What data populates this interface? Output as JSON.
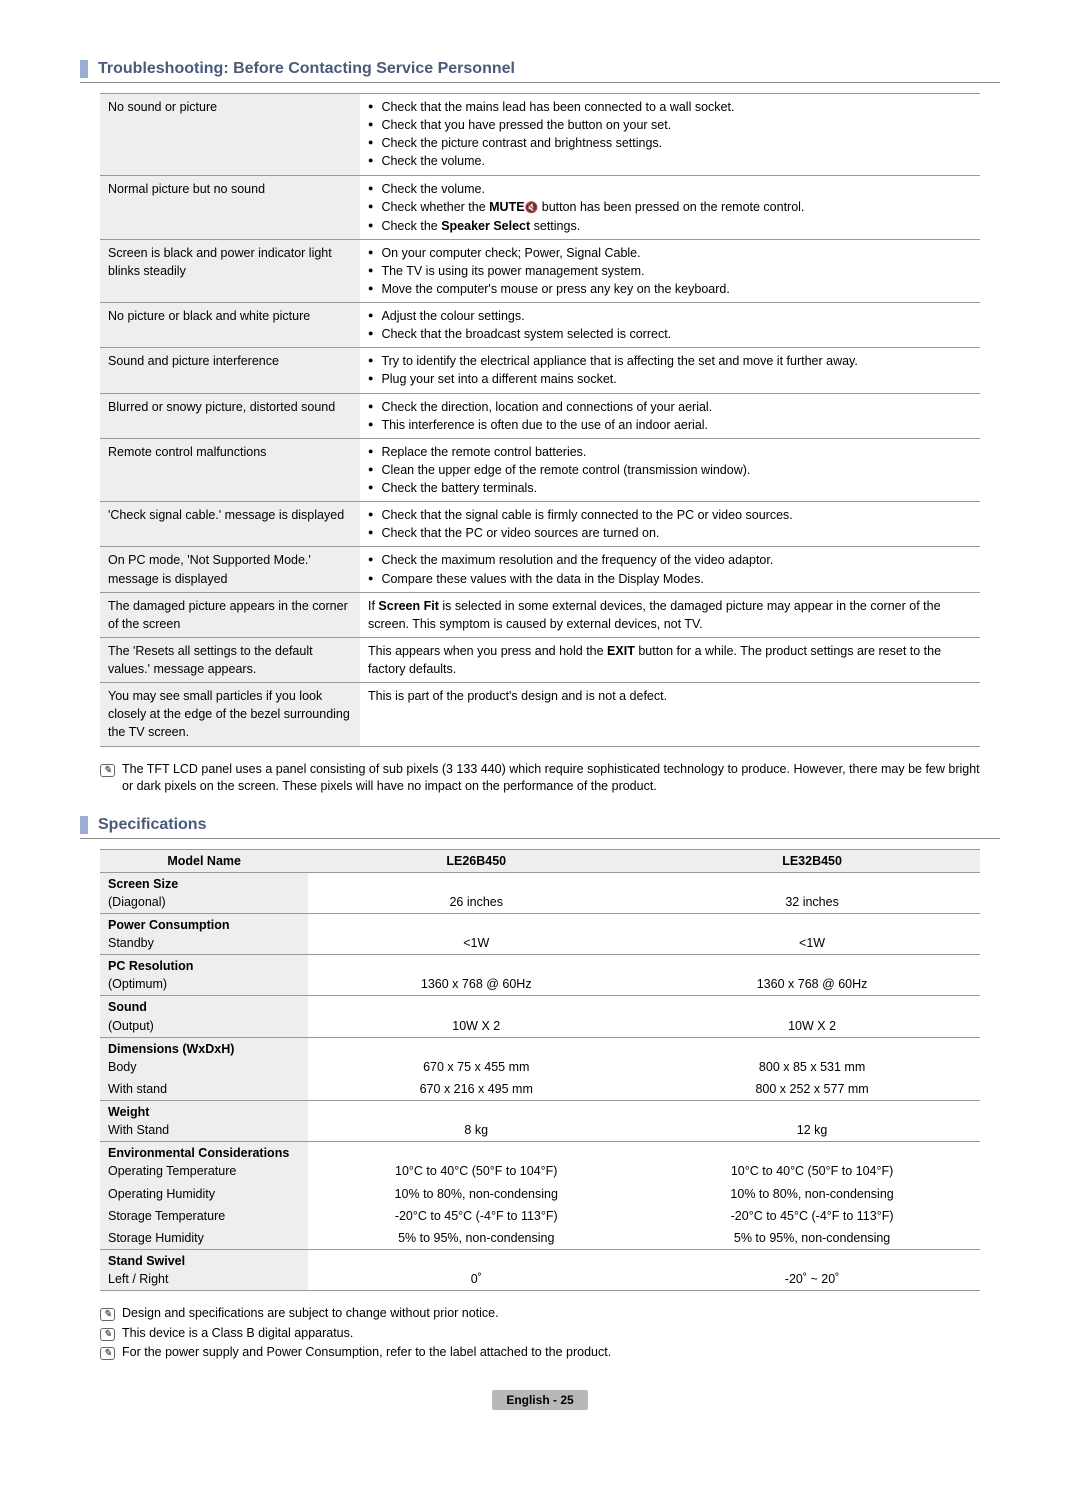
{
  "sections": {
    "troubleshooting_title": "Troubleshooting: Before Contacting Service Personnel",
    "specifications_title": "Specifications"
  },
  "trouble": [
    {
      "issue": "No sound or picture",
      "solutions": [
        "Check that the mains lead has been connected to a wall socket.",
        "Check that you have pressed the button on your set.",
        "Check the picture contrast and brightness settings.",
        "Check the volume."
      ]
    },
    {
      "issue": "Normal picture but no sound",
      "solutions_html": [
        "Check the volume.",
        "Check whether the <b>MUTE</b><span class='mute-icon'>🔇</span> button has been pressed on the remote control.",
        "Check the <b>Speaker Select</b> settings."
      ]
    },
    {
      "issue": "Screen is black and power indicator light blinks steadily",
      "solutions": [
        "On your computer check; Power, Signal Cable.",
        "The TV is using its power management system.",
        "Move the computer's mouse or press any key on the keyboard."
      ]
    },
    {
      "issue": "No picture or black and white picture",
      "solutions": [
        "Adjust the colour settings.",
        "Check that the broadcast system selected is correct."
      ]
    },
    {
      "issue": "Sound and picture interference",
      "solutions": [
        "Try to identify the electrical appliance that is affecting the set and move it further away.",
        "Plug your set into a different mains socket."
      ]
    },
    {
      "issue": "Blurred or snowy picture, distorted sound",
      "solutions": [
        "Check the direction, location and connections of your aerial.",
        "This interference is often due to the use of an indoor aerial."
      ]
    },
    {
      "issue": "Remote control malfunctions",
      "solutions": [
        "Replace the remote control batteries.",
        "Clean the upper edge of the remote control (transmission window).",
        "Check the battery terminals."
      ]
    },
    {
      "issue": "'Check signal cable.' message is displayed",
      "solutions": [
        "Check that the signal cable is firmly connected to the PC or video sources.",
        "Check that the PC or video sources are turned on."
      ]
    },
    {
      "issue": "On PC mode, 'Not Supported Mode.' message is displayed",
      "solutions": [
        "Check the maximum resolution and the frequency of the video adaptor.",
        "Compare these values with the data in the Display Modes."
      ]
    },
    {
      "issue": "The damaged picture appears in the corner of the screen",
      "text_html": "If <b>Screen Fit</b> is selected in some external devices, the damaged picture may appear in the corner of the screen. This symptom is caused by external devices, not TV."
    },
    {
      "issue": "The 'Resets all settings to the default values.' message appears.",
      "text_html": "This appears when you press and hold the <b>EXIT</b> button for a while. The product settings are reset to the factory defaults."
    },
    {
      "issue": "You may see small particles if you look closely at the edge of the bezel surrounding the TV screen.",
      "text": "This is part of the product's design and is not a defect."
    }
  ],
  "trouble_note": "The TFT LCD panel uses a panel consisting of sub pixels (3 133 440) which require sophisticated technology to produce. However, there may be few bright or dark pixels on the screen. These pixels will have no impact on the performance of the product.",
  "specs": {
    "headers": {
      "name": "Model Name",
      "col1": "LE26B450",
      "col2": "LE32B450"
    },
    "rows": [
      {
        "group": "Screen Size",
        "label": "(Diagonal)",
        "v1": "26 inches",
        "v2": "32 inches"
      },
      {
        "group": "Power Consumption",
        "label": "Standby",
        "v1": "<1W",
        "v2": "<1W"
      },
      {
        "group": "PC Resolution",
        "label": "(Optimum)",
        "v1": "1360 x 768 @ 60Hz",
        "v2": "1360 x 768 @ 60Hz"
      },
      {
        "group": "Sound",
        "label": "(Output)",
        "v1": "10W X 2",
        "v2": "10W X 2"
      },
      {
        "group": "Dimensions (WxDxH)",
        "multi": [
          {
            "label": "Body",
            "v1": "670 x 75 x 455 mm",
            "v2": "800 x 85 x 531 mm"
          },
          {
            "label": "With stand",
            "v1": "670 x 216 x 495 mm",
            "v2": "800 x 252 x 577 mm"
          }
        ]
      },
      {
        "group": "Weight",
        "label": "With Stand",
        "v1": "8 kg",
        "v2": "12 kg"
      },
      {
        "group": "Environmental Considerations",
        "multi": [
          {
            "label": "Operating Temperature",
            "v1": "10°C to 40°C (50°F to 104°F)",
            "v2": "10°C to 40°C (50°F to 104°F)"
          },
          {
            "label": "Operating Humidity",
            "v1": "10% to 80%, non-condensing",
            "v2": "10% to 80%, non-condensing"
          },
          {
            "label": "Storage Temperature",
            "v1": "-20°C to 45°C (-4°F to 113°F)",
            "v2": "-20°C to 45°C (-4°F to 113°F)"
          },
          {
            "label": "Storage Humidity",
            "v1": "5% to 95%, non-condensing",
            "v2": "5% to 95%, non-condensing"
          }
        ]
      },
      {
        "group": "Stand Swivel",
        "label": "Left / Right",
        "v1": "0˚",
        "v2": "-20˚ ~ 20˚"
      }
    ]
  },
  "spec_notes": [
    "Design and specifications are subject to change without prior notice.",
    "This device is a Class B digital apparatus.",
    "For the power supply and Power Consumption, refer to the label attached to the product."
  ],
  "footer": "English - 25",
  "colors": {
    "heading_text": "#4a5b7a",
    "heading_bar": "#9aaed2",
    "row_bg": "#eeeeee",
    "border": "#999999",
    "footer_bg": "#b8b8b8"
  }
}
